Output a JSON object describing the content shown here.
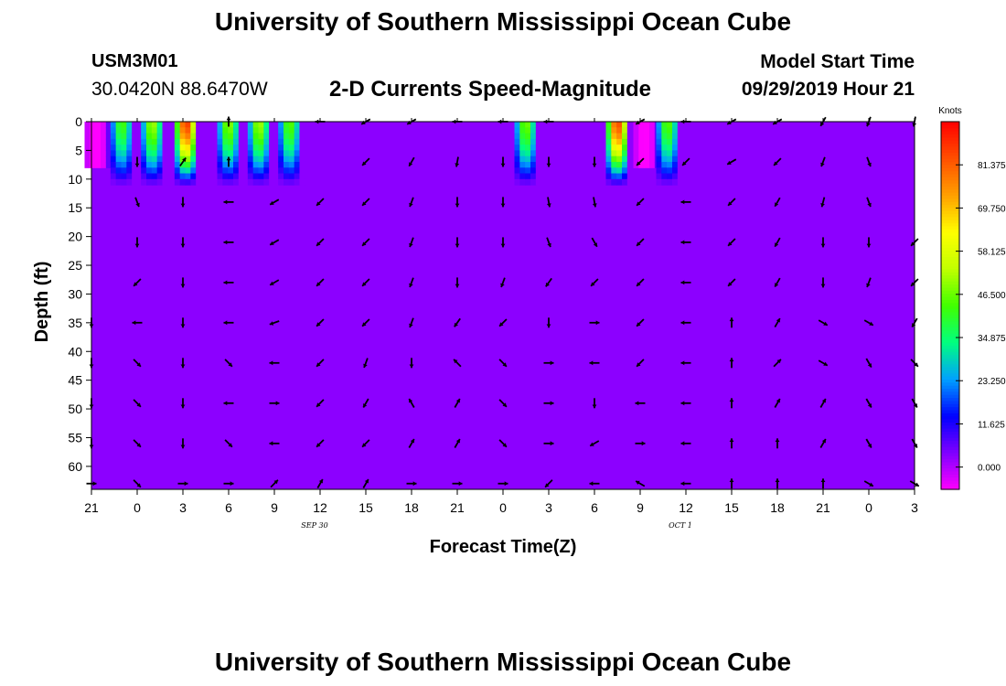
{
  "header": {
    "title_top": "University of Southern Mississippi Ocean Cube",
    "title_bottom": "University of Southern Mississippi Ocean Cube",
    "station_id": "USM3M01",
    "station_coords": "30.0420N 88.6470W",
    "model_start_label": "Model Start Time",
    "model_start_value": "09/29/2019 Hour 21"
  },
  "chart_data": {
    "type": "heatmap",
    "title": "2-D Currents Speed-Magnitude",
    "xlabel": "Forecast Time(Z)",
    "ylabel": "Depth (ft)",
    "x_ticks": [
      "21",
      "0",
      "3",
      "6",
      "9",
      "12",
      "15",
      "18",
      "21",
      "0",
      "3",
      "6",
      "9",
      "12",
      "15",
      "18",
      "21",
      "0",
      "3"
    ],
    "y_ticks": [
      0,
      5,
      10,
      15,
      20,
      25,
      30,
      35,
      40,
      45,
      50,
      55,
      60
    ],
    "ylim": [
      0,
      64
    ],
    "x_range_hours": [
      0,
      54
    ],
    "date_labels": [
      {
        "text": "SEP 30",
        "hour": 15
      },
      {
        "text": "OCT 1",
        "hour": 39
      }
    ],
    "colorbar": {
      "unit": "Knots",
      "tick_labels": [
        "81.375",
        "69.750",
        "58.125",
        "46.500",
        "34.875",
        "23.250",
        "11.625",
        "0.000"
      ],
      "tick_values": [
        81.375,
        69.75,
        58.125,
        46.5,
        34.875,
        23.25,
        11.625,
        0.0
      ],
      "range": [
        -6,
        93
      ],
      "colors": [
        "#ff00ff",
        "#8000ff",
        "#0000ff",
        "#00a0ff",
        "#00ff80",
        "#40ff00",
        "#c0ff00",
        "#ffff00",
        "#ffa000",
        "#ff5000",
        "#ff0000"
      ]
    },
    "background_value": 3,
    "vertical_profiles": [
      {
        "hour": 0.3,
        "top": 0,
        "bottom": 8,
        "peak": -6
      },
      {
        "hour": 2,
        "top": 0,
        "bottom": 11,
        "peak": 44
      },
      {
        "hour": 4,
        "top": 0,
        "bottom": 11,
        "peak": 52
      },
      {
        "hour": 6.2,
        "top": 0,
        "bottom": 11,
        "peak": 88
      },
      {
        "hour": 9,
        "top": 0,
        "bottom": 11,
        "peak": 50
      },
      {
        "hour": 11,
        "top": 0,
        "bottom": 11,
        "peak": 52
      },
      {
        "hour": 13,
        "top": 0,
        "bottom": 11,
        "peak": 46
      },
      {
        "hour": 28.5,
        "top": 0,
        "bottom": 11,
        "peak": 48
      },
      {
        "hour": 34.5,
        "top": 0,
        "bottom": 11,
        "peak": 86
      },
      {
        "hour": 36.3,
        "top": 0,
        "bottom": 8,
        "peak": -6
      },
      {
        "hour": 37.8,
        "top": 0,
        "bottom": 11,
        "peak": 46
      }
    ],
    "vector_depths": [
      0,
      7,
      14,
      21,
      28,
      35,
      42,
      49,
      56,
      63
    ],
    "vector_hours": [
      0,
      3,
      6,
      9,
      12,
      15,
      18,
      21,
      24,
      27,
      30,
      33,
      36,
      39,
      42,
      45,
      48,
      51,
      54
    ],
    "vector_directions_deg": [
      [
        null,
        null,
        null,
        0,
        null,
        270,
        240,
        240,
        270,
        270,
        270,
        null,
        240,
        270,
        240,
        240,
        210,
        200,
        190
      ],
      [
        null,
        180,
        35,
        0,
        null,
        null,
        225,
        210,
        190,
        180,
        180,
        180,
        225,
        225,
        240,
        225,
        200,
        160,
        null
      ],
      [
        null,
        160,
        180,
        270,
        240,
        225,
        225,
        200,
        180,
        180,
        170,
        170,
        225,
        270,
        225,
        210,
        195,
        160,
        null
      ],
      [
        null,
        180,
        180,
        270,
        240,
        225,
        225,
        200,
        180,
        180,
        160,
        150,
        225,
        270,
        225,
        210,
        180,
        180,
        225
      ],
      [
        null,
        225,
        180,
        270,
        240,
        225,
        225,
        200,
        180,
        200,
        215,
        225,
        225,
        270,
        225,
        210,
        180,
        200,
        225
      ],
      [
        180,
        270,
        180,
        270,
        250,
        225,
        225,
        200,
        215,
        225,
        180,
        90,
        225,
        270,
        0,
        30,
        120,
        120,
        210
      ],
      [
        180,
        135,
        180,
        135,
        270,
        225,
        200,
        180,
        315,
        135,
        90,
        270,
        225,
        270,
        0,
        45,
        120,
        150,
        135
      ],
      [
        180,
        135,
        180,
        270,
        90,
        225,
        210,
        330,
        30,
        135,
        90,
        180,
        270,
        270,
        0,
        30,
        30,
        150,
        150
      ],
      [
        180,
        135,
        180,
        135,
        270,
        225,
        225,
        30,
        30,
        135,
        90,
        240,
        90,
        270,
        0,
        0,
        30,
        150,
        150
      ],
      [
        90,
        135,
        90,
        90,
        45,
        30,
        30,
        90,
        90,
        90,
        225,
        270,
        300,
        270,
        0,
        0,
        0,
        120,
        120
      ]
    ]
  }
}
